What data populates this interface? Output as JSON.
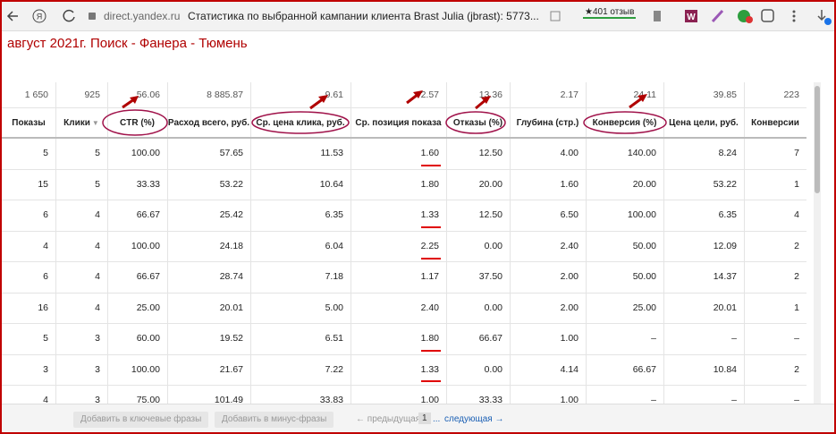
{
  "browser": {
    "url": "direct.yandex.ru",
    "tab_title": "Статистика по выбранной кампании клиента Brast Julia (jbrast): 5773...",
    "rating": "★401 отзыв"
  },
  "page": {
    "heading": "август 2021г. Поиск - Фанера - Тюмень"
  },
  "table": {
    "totals": [
      "1 650",
      "925",
      "56.06",
      "8 885.87",
      "9.61",
      "2.57",
      "13.36",
      "2.17",
      "24.11",
      "39.85",
      "223"
    ],
    "headers": [
      "Показы",
      "Клики",
      "CTR (%)",
      "Расход всего, руб.",
      "Ср. цена клика, руб.",
      "Ср. позиция показа",
      "Отказы (%)",
      "Глубина (стр.)",
      "Конверсия (%)",
      "Цена цели, руб.",
      "Конверсии"
    ],
    "rows": [
      [
        "5",
        "5",
        "100.00",
        "57.65",
        "11.53",
        "1.60",
        "12.50",
        "4.00",
        "140.00",
        "8.24",
        "7"
      ],
      [
        "15",
        "5",
        "33.33",
        "53.22",
        "10.64",
        "1.80",
        "20.00",
        "1.60",
        "20.00",
        "53.22",
        "1"
      ],
      [
        "6",
        "4",
        "66.67",
        "25.42",
        "6.35",
        "1.33",
        "12.50",
        "6.50",
        "100.00",
        "6.35",
        "4"
      ],
      [
        "4",
        "4",
        "100.00",
        "24.18",
        "6.04",
        "2.25",
        "0.00",
        "2.40",
        "50.00",
        "12.09",
        "2"
      ],
      [
        "6",
        "4",
        "66.67",
        "28.74",
        "7.18",
        "1.17",
        "37.50",
        "2.00",
        "50.00",
        "14.37",
        "2"
      ],
      [
        "16",
        "4",
        "25.00",
        "20.01",
        "5.00",
        "2.40",
        "0.00",
        "2.00",
        "25.00",
        "20.01",
        "1"
      ],
      [
        "5",
        "3",
        "60.00",
        "19.52",
        "6.51",
        "1.80",
        "66.67",
        "1.00",
        "–",
        "–",
        "–"
      ],
      [
        "3",
        "3",
        "100.00",
        "21.67",
        "7.22",
        "1.33",
        "0.00",
        "4.14",
        "66.67",
        "10.84",
        "2"
      ],
      [
        "4",
        "3",
        "75.00",
        "101.49",
        "33.83",
        "1.00",
        "33.33",
        "1.00",
        "–",
        "–",
        "–"
      ]
    ]
  },
  "footer": {
    "add_keywords": "Добавить в ключевые фразы",
    "add_negative": "Добавить в минус-фразы",
    "prev": "← предыдущая",
    "page": "1",
    "ellipsis": "...",
    "next": "следующая →"
  }
}
